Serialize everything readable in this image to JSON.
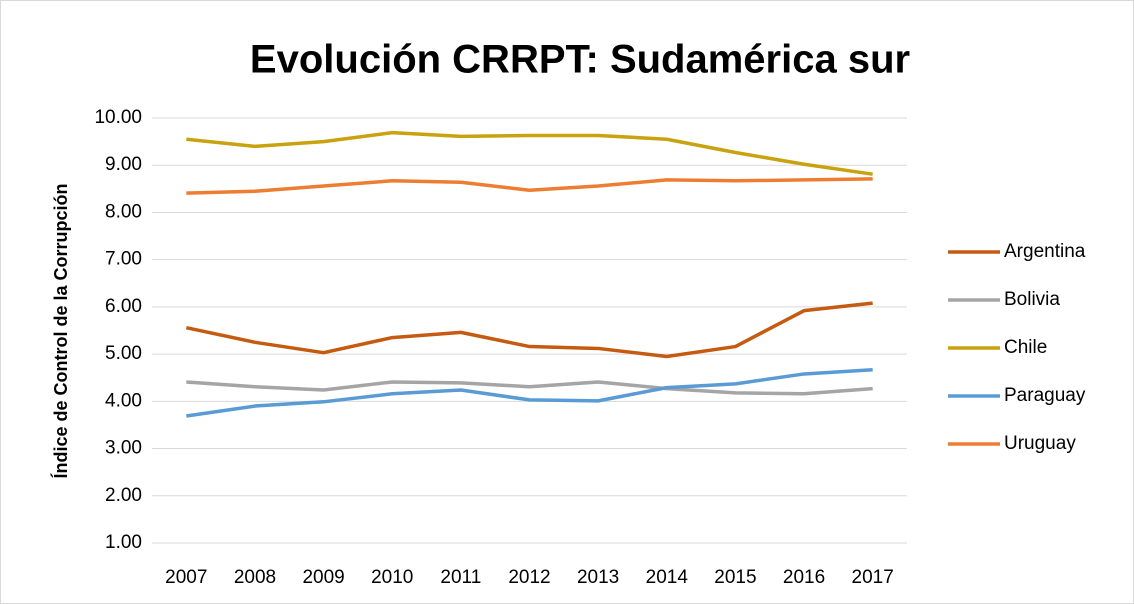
{
  "chart_data": {
    "type": "line",
    "title": "Evolución CRRPT: Sudamérica sur",
    "y_label": "Índice de Control de la Corrupción",
    "categories": [
      "2007",
      "2008",
      "2009",
      "2010",
      "2011",
      "2012",
      "2013",
      "2014",
      "2015",
      "2016",
      "2017"
    ],
    "series": [
      {
        "name": "Argentina",
        "color": "#c55a11",
        "values": [
          5.56,
          5.25,
          5.03,
          5.35,
          5.46,
          5.16,
          5.12,
          4.95,
          5.16,
          5.92,
          6.08
        ]
      },
      {
        "name": "Bolivia",
        "color": "#a5a5a5",
        "values": [
          4.41,
          4.31,
          4.24,
          4.41,
          4.39,
          4.31,
          4.41,
          4.27,
          4.18,
          4.16,
          4.27
        ]
      },
      {
        "name": "Chile",
        "color": "#c9a20f",
        "values": [
          9.55,
          9.4,
          9.5,
          9.69,
          9.61,
          9.63,
          9.63,
          9.55,
          9.27,
          9.02,
          8.81
        ]
      },
      {
        "name": "Paraguay",
        "color": "#5b9bd5",
        "values": [
          3.69,
          3.9,
          3.99,
          4.16,
          4.24,
          4.03,
          4.01,
          4.29,
          4.37,
          4.58,
          4.67
        ]
      },
      {
        "name": "Uruguay",
        "color": "#ed7d31",
        "values": [
          8.41,
          8.45,
          8.56,
          8.67,
          8.64,
          8.47,
          8.56,
          8.69,
          8.67,
          8.69,
          8.71
        ]
      }
    ],
    "ylim": [
      1,
      10
    ],
    "yticks": [
      {
        "value": 1,
        "label": "1.00"
      },
      {
        "value": 2,
        "label": "2.00"
      },
      {
        "value": 3,
        "label": "3.00"
      },
      {
        "value": 4,
        "label": "4.00"
      },
      {
        "value": 5,
        "label": "5.00"
      },
      {
        "value": 6,
        "label": "6.00"
      },
      {
        "value": 7,
        "label": "7.00"
      },
      {
        "value": 8,
        "label": "8.00"
      },
      {
        "value": 9,
        "label": "9.00"
      },
      {
        "value": 10,
        "label": "10.00"
      }
    ],
    "grid": true,
    "legend": "right"
  }
}
